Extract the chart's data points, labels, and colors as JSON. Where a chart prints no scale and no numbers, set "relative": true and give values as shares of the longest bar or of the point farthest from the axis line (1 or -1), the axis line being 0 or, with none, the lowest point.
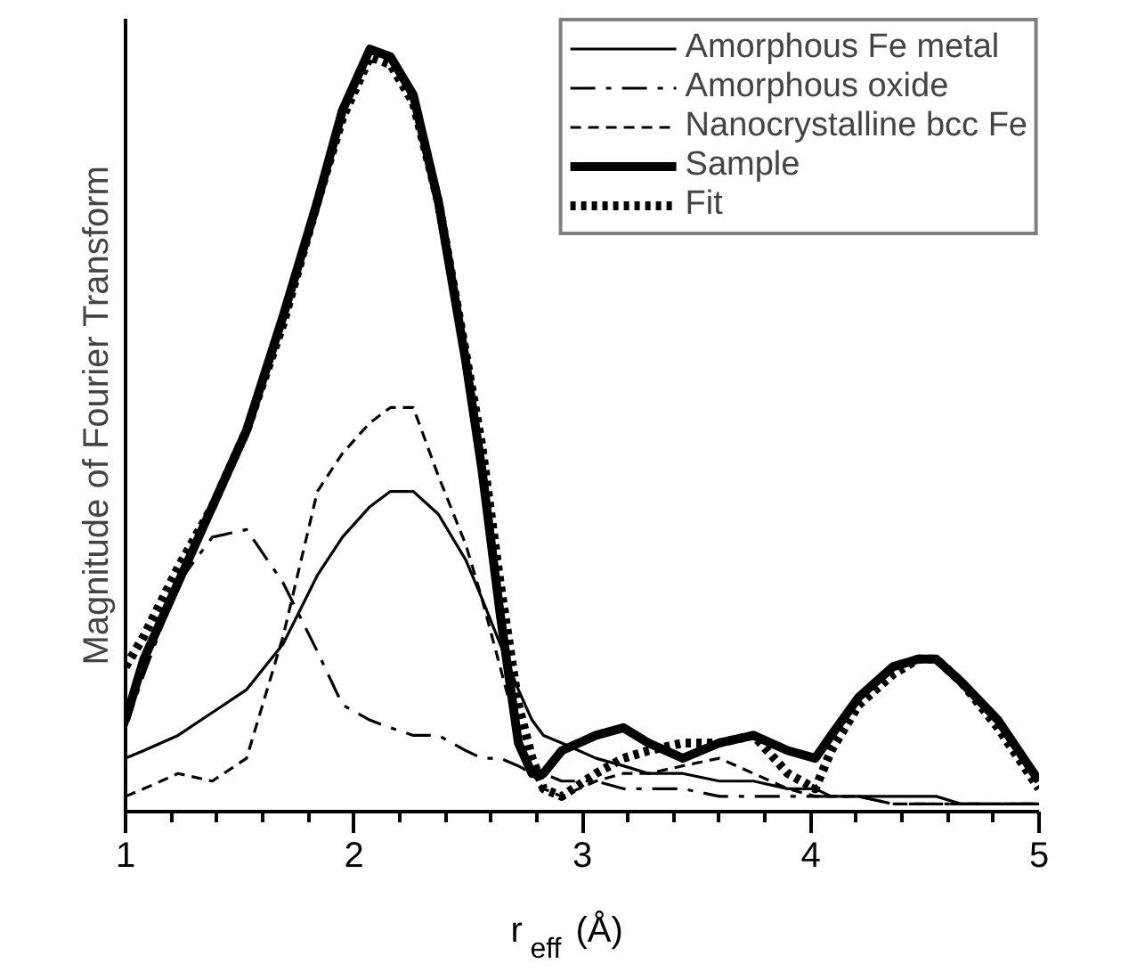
{
  "chart_data": {
    "type": "line",
    "relative": true,
    "xlabel": "r$_{eff}$ (Å)",
    "ylabel": "Magnitude of Fourier Transform",
    "xlim": [
      1,
      5
    ],
    "xticks": [
      1,
      {
        "value": 1.2,
        "label": null
      },
      {
        "value": 1.4,
        "label": null
      },
      {
        "value": 1.6,
        "label": null
      },
      {
        "value": 1.8,
        "label": null
      },
      2,
      {
        "value": 2.2,
        "label": null
      },
      {
        "value": 2.4,
        "label": null
      },
      {
        "value": 2.6,
        "label": null
      },
      {
        "value": 2.8,
        "label": null
      },
      3,
      {
        "value": 3.2,
        "label": null
      },
      {
        "value": 3.4,
        "label": null
      },
      {
        "value": 3.6,
        "label": null
      },
      {
        "value": 3.8,
        "label": null
      },
      4,
      {
        "value": 4.2,
        "label": null
      },
      {
        "value": 4.4,
        "label": null
      },
      {
        "value": 4.6,
        "label": null
      },
      {
        "value": 4.8,
        "label": null
      },
      5
    ],
    "legend": "top right",
    "grid": false,
    "x": [
      1.0,
      1.08,
      1.23,
      1.38,
      1.53,
      1.69,
      1.84,
      1.95,
      2.07,
      2.16,
      2.26,
      2.37,
      2.49,
      2.56,
      2.64,
      2.72,
      2.78,
      2.83,
      2.91,
      3.06,
      3.18,
      3.29,
      3.44,
      3.6,
      3.75,
      3.9,
      4.02,
      4.09,
      4.21,
      4.36,
      4.47,
      4.55,
      4.66,
      4.82,
      5.0
    ],
    "series": [
      {
        "name": "Amorphous Fe metal",
        "color": "#000000",
        "line_style": "solid",
        "values": [
          0.07,
          0.08,
          0.1,
          0.13,
          0.16,
          0.22,
          0.31,
          0.36,
          0.4,
          0.42,
          0.42,
          0.39,
          0.33,
          0.28,
          0.22,
          0.16,
          0.12,
          0.1,
          0.09,
          0.07,
          0.06,
          0.05,
          0.05,
          0.04,
          0.04,
          0.03,
          0.03,
          0.02,
          0.02,
          0.02,
          0.02,
          0.02,
          0.01,
          0.01,
          0.01
        ]
      },
      {
        "name": "Amorphous oxide",
        "color": "#000000",
        "line_style": "dashdot",
        "values": [
          0.11,
          0.18,
          0.3,
          0.36,
          0.37,
          0.3,
          0.21,
          0.14,
          0.12,
          0.11,
          0.1,
          0.1,
          0.08,
          0.07,
          0.07,
          0.06,
          0.05,
          0.05,
          0.04,
          0.04,
          0.03,
          0.03,
          0.03,
          0.02,
          0.02,
          0.02,
          0.02,
          0.02,
          0.02,
          0.01,
          0.01,
          0.01,
          0.01,
          0.01,
          0.01
        ]
      },
      {
        "name": "Nanocrystalline bcc Fe",
        "color": "#000000",
        "line_style": "dashed",
        "values": [
          0.02,
          0.03,
          0.05,
          0.04,
          0.07,
          0.23,
          0.42,
          0.47,
          0.51,
          0.53,
          0.53,
          0.44,
          0.35,
          0.28,
          0.19,
          0.1,
          0.05,
          0.03,
          0.02,
          0.04,
          0.05,
          0.05,
          0.06,
          0.07,
          0.05,
          0.03,
          0.02,
          0.02,
          0.02,
          0.01,
          0.01,
          0.01,
          0.01,
          0.01,
          0.01
        ]
      },
      {
        "name": "Sample",
        "color": "#000000",
        "line_style": "solid",
        "values": [
          0.12,
          0.2,
          0.3,
          0.4,
          0.5,
          0.65,
          0.8,
          0.92,
          1.0,
          0.99,
          0.94,
          0.8,
          0.59,
          0.45,
          0.26,
          0.09,
          0.05,
          0.05,
          0.08,
          0.1,
          0.11,
          0.09,
          0.07,
          0.09,
          0.1,
          0.08,
          0.07,
          0.1,
          0.15,
          0.19,
          0.2,
          0.2,
          0.17,
          0.12,
          0.04
        ]
      },
      {
        "name": "Fit",
        "color": "#000000",
        "line_style": "dotted",
        "values": [
          0.19,
          0.23,
          0.32,
          0.4,
          0.5,
          0.64,
          0.8,
          0.91,
          0.99,
          0.98,
          0.93,
          0.8,
          0.6,
          0.48,
          0.3,
          0.14,
          0.07,
          0.03,
          0.02,
          0.05,
          0.07,
          0.08,
          0.09,
          0.09,
          0.1,
          0.05,
          0.03,
          0.08,
          0.14,
          0.18,
          0.2,
          0.2,
          0.17,
          0.11,
          0.03
        ]
      }
    ]
  }
}
